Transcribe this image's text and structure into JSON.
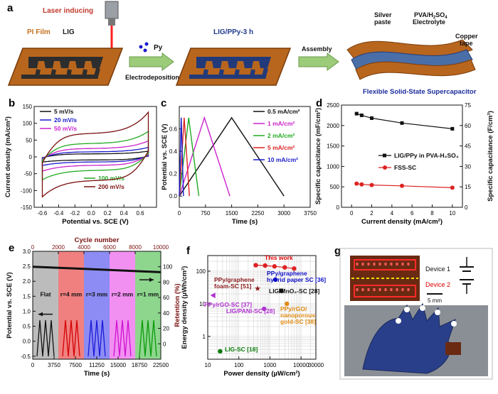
{
  "panel_a": {
    "label": "a",
    "laser": "Laser inducing",
    "pi_film": "PI Film",
    "lig": "LIG",
    "py": "Py",
    "electrodeposition": "Electrodeposition",
    "lig_ppy": "LIG/PPy-3 h",
    "assembly": "Assembly",
    "silver": "Silver paste",
    "electrolyte": "PVA/H₂SO₄ Electrolyte",
    "copper": "Copper tape",
    "device_title": "Flexible Solid-State Supercapacitor"
  },
  "panel_b_labels": {
    "label": "b",
    "xlabel": "Potential vs. SCE (V)",
    "ylabel": "Current density (mA/cm²)"
  },
  "panel_c_labels": {
    "label": "c",
    "xlabel": "Time (s)",
    "ylabel": "Potential vs. SCE (V)"
  },
  "panel_d_labels": {
    "label": "d",
    "xlabel": "Current density (mA/cm²)",
    "ylabel_left": "Specific capacitance (mF/cm²)",
    "ylabel_right": "Specific capacitance (F/cm³)"
  },
  "panel_e_labels": {
    "label": "e",
    "xlabel": "Time (s)",
    "xlabel_top": "Cycle number",
    "ylabel_left": "Potential vs. SCE (V)",
    "ylabel_right": "Retention (%)",
    "bands": [
      {
        "label": "Flat",
        "color": "#bcbcbc",
        "line": "#111111"
      },
      {
        "label": "r=4 mm",
        "color": "#f08080",
        "line": "#d40000"
      },
      {
        "label": "r=3 mm",
        "color": "#8c8cf4",
        "line": "#1a1ad8"
      },
      {
        "label": "r=2 mm",
        "color": "#f290f2",
        "line": "#d010d0"
      },
      {
        "label": "r=1 mm",
        "color": "#8ed68e",
        "line": "#0a9a0a"
      }
    ]
  },
  "panel_f_labels": {
    "label": "f",
    "xlabel": "Power density (µW/cm²)",
    "ylabel": "Energy density (µWh/cm²)",
    "annotations": [
      {
        "text": "This work",
        "color": "#e00000"
      },
      {
        "text": "PPy/graphene",
        "color": "#1010c8"
      },
      {
        "text": "hybrid paper SC [36]",
        "color": "#1010c8"
      },
      {
        "text": "PPy/graphene",
        "color": "#8b1a1a"
      },
      {
        "text": "foam-SC [51]",
        "color": "#8b1a1a"
      },
      {
        "text": "LIG/MnO₂-SC [28]",
        "color": "#111111"
      },
      {
        "text": "PPy/rGO-SC [37]",
        "color": "#b030d0"
      },
      {
        "text": "LIG/PANI-SC [28]",
        "color": "#b030d0"
      },
      {
        "text": "PPy/rGO/",
        "color": "#e08a10"
      },
      {
        "text": "nanoporous",
        "color": "#e08a10"
      },
      {
        "text": "gold-SC [38]",
        "color": "#e08a10"
      },
      {
        "text": "LIG-SC [18]",
        "color": "#0a7a0a"
      }
    ]
  },
  "panel_g": {
    "label": "g",
    "device1": "Device 1",
    "device2": "Device 2",
    "scale": "5 mm"
  },
  "chart_data": [
    {
      "type": "line",
      "panel": "b",
      "xlabel": "Potential vs. SCE (V)",
      "ylabel": "Current density (mA/cm²)",
      "xlim": [
        -0.7,
        0.8
      ],
      "ylim": [
        -150,
        150
      ],
      "xticks": [
        -0.6,
        -0.4,
        -0.2,
        0.0,
        0.2,
        0.4,
        0.6
      ],
      "yticks": [
        -150,
        -100,
        -50,
        0,
        50,
        100,
        150
      ],
      "series": [
        {
          "name": "5 mV/s",
          "color": "#111111",
          "peak": 18
        },
        {
          "name": "20 mV/s",
          "color": "#1a1acc",
          "peak": 30
        },
        {
          "name": "50 mV/s",
          "color": "#cc22cc",
          "peak": 50
        },
        {
          "name": "100 mV/s",
          "color": "#22aa22",
          "peak": 80
        },
        {
          "name": "200 mV/s",
          "color": "#7a1010",
          "peak": 140
        }
      ]
    },
    {
      "type": "line",
      "panel": "c",
      "xlabel": "Time (s)",
      "ylabel": "Potential vs. SCE (V)",
      "xlim": [
        0,
        3750
      ],
      "ylim": [
        -0.1,
        0.8
      ],
      "xticks": [
        0,
        750,
        1500,
        2250,
        3000,
        3750
      ],
      "yticks": [
        0.0,
        0.2,
        0.4,
        0.6
      ],
      "series": [
        {
          "name": "0.5 mA/cm²",
          "color": "#111111",
          "x": [
            0,
            1500,
            3000
          ],
          "y": [
            0,
            0.7,
            0
          ]
        },
        {
          "name": "1 mA/cm²",
          "color": "#cc22cc",
          "x": [
            0,
            720,
            1450
          ],
          "y": [
            0,
            0.7,
            0
          ]
        },
        {
          "name": "2 mA/cm²",
          "color": "#22aa22",
          "x": [
            0,
            270,
            560
          ],
          "y": [
            0,
            0.7,
            0
          ]
        },
        {
          "name": "5 mA/cm²",
          "color": "#dd2222",
          "x": [
            0,
            140,
            290
          ],
          "y": [
            0,
            0.7,
            0
          ]
        },
        {
          "name": "10 mA/cm²",
          "color": "#1a1acc",
          "x": [
            0,
            55,
            120
          ],
          "y": [
            0,
            0.7,
            0
          ]
        }
      ]
    },
    {
      "type": "line",
      "panel": "d",
      "xlabel": "Current density (mA/cm²)",
      "ylabel": "Specific capacitance (mF/cm²)",
      "xlim": [
        -1,
        11
      ],
      "ylim": [
        0,
        2500
      ],
      "ylim_right": [
        0,
        75
      ],
      "xticks": [
        0,
        2,
        4,
        6,
        8,
        10
      ],
      "yticks": [
        0,
        500,
        1000,
        1500,
        2000,
        2500
      ],
      "yticks_right": [
        0,
        15,
        30,
        45,
        60,
        75
      ],
      "series": [
        {
          "name": "LIG/PPy in PVA-H₂SO₄",
          "color": "#111111",
          "marker": "square",
          "x": [
            0.5,
            1,
            2,
            5,
            10
          ],
          "y": [
            2290,
            2250,
            2180,
            2060,
            1920
          ]
        },
        {
          "name": "FSS-SC",
          "color": "#dd2222",
          "marker": "circle",
          "x": [
            0.5,
            1,
            2,
            5,
            10
          ],
          "y": [
            580,
            560,
            545,
            525,
            480
          ]
        }
      ]
    },
    {
      "type": "line",
      "panel": "e",
      "xlabel": "Time (s)",
      "ylabel": "Potential vs. SCE (V)",
      "xlim": [
        0,
        22500
      ],
      "ylim": [
        -0.6,
        3.0
      ],
      "xticks": [
        0,
        3750,
        7500,
        11250,
        15000,
        18750,
        22500
      ],
      "yticks": [
        -0.5,
        0.0,
        0.5,
        1.0,
        1.5,
        2.0,
        2.5,
        3.0
      ],
      "top_axis": {
        "label": "Cycle number",
        "ticks": [
          0,
          2000,
          4000,
          6000,
          8000,
          10000
        ]
      },
      "right_axis": {
        "label": "Retention (%)",
        "ylim": [
          -20,
          120
        ],
        "ticks": [
          0,
          20,
          40,
          60,
          80,
          100
        ]
      },
      "retention": {
        "x": [
          0,
          10000
        ],
        "y": [
          100,
          93
        ]
      },
      "segments": [
        "Flat",
        "r=4 mm",
        "r=3 mm",
        "r=2 mm",
        "r=1 mm"
      ]
    },
    {
      "type": "scatter",
      "panel": "f",
      "xlabel": "Power density (µW/cm²)",
      "ylabel": "Energy density (µWh/cm²)",
      "xscale": "log",
      "yscale": "log",
      "xlim": [
        10,
        30000
      ],
      "ylim": [
        0.2,
        300
      ],
      "xticks": [
        10,
        100,
        1000,
        10000,
        30000
      ],
      "yticks": [
        1,
        10,
        100
      ],
      "series": [
        {
          "name": "This work",
          "color": "#dd2222",
          "x": [
            350,
            700,
            1400,
            3000,
            6000
          ],
          "y": [
            152,
            148,
            140,
            130,
            120
          ]
        },
        {
          "name": "PPy/graphene hybrid paper SC",
          "color": "#1010c8",
          "x": [
            1500
          ],
          "y": [
            55
          ]
        },
        {
          "name": "PPy/graphene foam-SC",
          "color": "#8b1a1a",
          "x": [
            400
          ],
          "y": [
            30
          ]
        },
        {
          "name": "LIG/MnO₂-SC",
          "color": "#111111",
          "x": [
            2300
          ],
          "y": [
            25
          ]
        },
        {
          "name": "PPy/rGO-SC",
          "color": "#b030d0",
          "x": [
            15
          ],
          "y": [
            18
          ]
        },
        {
          "name": "LIG/PANI-SC",
          "color": "#b030d0",
          "x": [
            650
          ],
          "y": [
            7
          ]
        },
        {
          "name": "PPy/rGO/nanoporous gold-SC",
          "color": "#e08a10",
          "x": [
            3500
          ],
          "y": [
            10
          ]
        },
        {
          "name": "LIG-SC",
          "color": "#0a7a0a",
          "x": [
            25
          ],
          "y": [
            0.35
          ]
        }
      ]
    }
  ]
}
